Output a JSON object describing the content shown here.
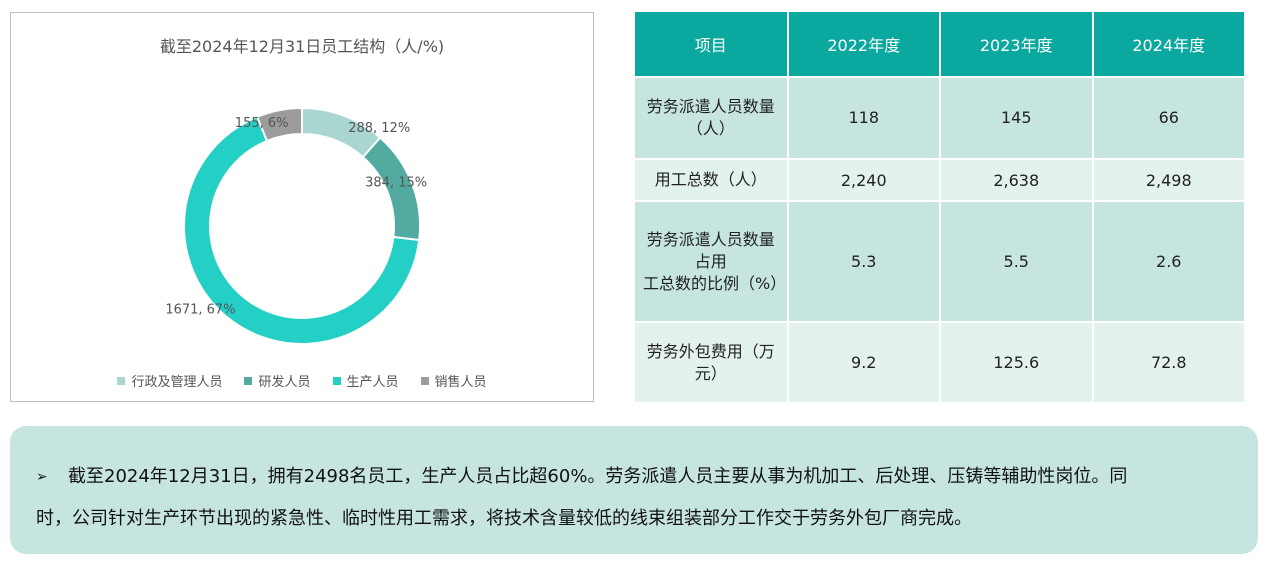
{
  "chart_data": {
    "type": "pie",
    "title": "截至2024年12月31日员工结构（人/%)",
    "categories": [
      "行政及管理人员",
      "研发人员",
      "生产人员",
      "销售人员"
    ],
    "values": [
      288,
      384,
      1671,
      155
    ],
    "percents": [
      12,
      15,
      67,
      6
    ],
    "labels": [
      "288, 12%",
      "384, 15%",
      "1671, 67%",
      "155, 6%"
    ],
    "colors": [
      "#a9d6d0",
      "#52aaa0",
      "#24cfc6",
      "#9c9c9c"
    ],
    "donut": true,
    "legend_position": "bottom"
  },
  "table": {
    "headers": [
      "项目",
      "2022年度",
      "2023年度",
      "2024年度"
    ],
    "rows": [
      {
        "item": "劳务派遣人员数量（人）",
        "item_lines": [
          "劳务派遣人员数量（人）"
        ],
        "values": [
          "118",
          "145",
          "66"
        ]
      },
      {
        "item": "用工总数（人）",
        "item_lines": [
          "用工总数（人）"
        ],
        "values": [
          "2,240",
          "2,638",
          "2,498"
        ]
      },
      {
        "item": "劳务派遣人员数量占用工总数的比例（%）",
        "item_lines": [
          "劳务派遣人员数量占用",
          "工总数的比例（%）"
        ],
        "values": [
          "5.3",
          "5.5",
          "2.6"
        ]
      },
      {
        "item": "劳务外包费用（万元）",
        "item_lines": [
          "劳务外包费用（万元）"
        ],
        "values": [
          "9.2",
          "125.6",
          "72.8"
        ]
      }
    ]
  },
  "note": {
    "bullet": "➢",
    "line1": "截至2024年12月31日，拥有2498名员工，生产人员占比超60%。劳务派遣人员主要从事为机加工、后处理、压铸等辅助性岗位。同",
    "line2": "时，公司针对生产环节出现的紧急性、临时性用工需求，将技术含量较低的线束组装部分工作交于劳务外包厂商完成。"
  }
}
